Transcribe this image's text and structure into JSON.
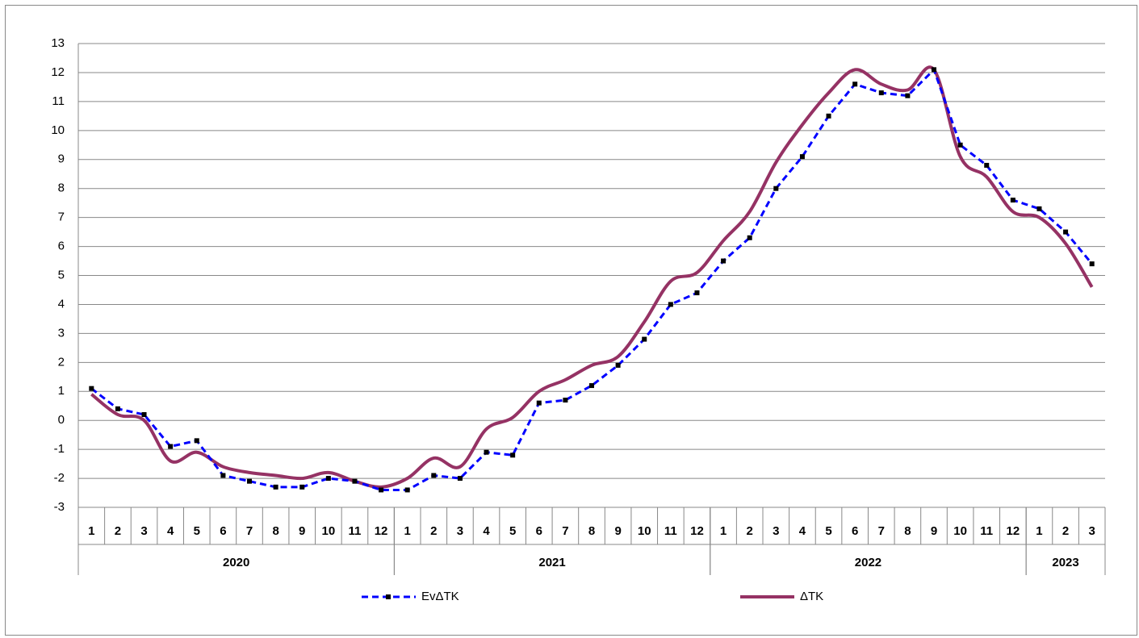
{
  "chart_data": {
    "type": "line",
    "categories": [
      "1",
      "2",
      "3",
      "4",
      "5",
      "6",
      "7",
      "8",
      "9",
      "10",
      "11",
      "12",
      "1",
      "2",
      "3",
      "4",
      "5",
      "6",
      "7",
      "8",
      "9",
      "10",
      "11",
      "12",
      "1",
      "2",
      "3",
      "4",
      "5",
      "6",
      "7",
      "8",
      "9",
      "10",
      "11",
      "12",
      "1",
      "2",
      "3"
    ],
    "category_groups": [
      {
        "label": "2020",
        "size": 12
      },
      {
        "label": "2021",
        "size": 12
      },
      {
        "label": "2022",
        "size": 12
      },
      {
        "label": "2023",
        "size": 3
      }
    ],
    "series": [
      {
        "name": "EvΔTK",
        "color": "#0000ff",
        "dashed": true,
        "marker": "square",
        "smooth": false,
        "values": [
          1.1,
          0.4,
          0.2,
          -0.9,
          -0.7,
          -1.9,
          -2.1,
          -2.3,
          -2.3,
          -2.0,
          -2.1,
          -2.4,
          -2.4,
          -1.9,
          -2.0,
          -1.1,
          -1.2,
          0.6,
          0.7,
          1.2,
          1.9,
          2.8,
          4.0,
          4.4,
          5.5,
          6.3,
          8.0,
          9.1,
          10.5,
          11.6,
          11.3,
          11.2,
          12.1,
          9.5,
          8.8,
          7.6,
          7.3,
          6.5,
          5.4
        ]
      },
      {
        "name": "ΔTK",
        "color": "#953264",
        "dashed": false,
        "marker": null,
        "smooth": true,
        "values": [
          0.9,
          0.2,
          0.0,
          -1.4,
          -1.1,
          -1.6,
          -1.8,
          -1.9,
          -2.0,
          -1.8,
          -2.1,
          -2.3,
          -2.0,
          -1.3,
          -1.6,
          -0.3,
          0.1,
          1.0,
          1.4,
          1.9,
          2.2,
          3.4,
          4.8,
          5.1,
          6.2,
          7.2,
          8.9,
          10.2,
          11.3,
          12.1,
          11.6,
          11.4,
          12.1,
          9.1,
          8.4,
          7.2,
          7.0,
          6.1,
          4.6
        ]
      }
    ],
    "ylim": [
      -3,
      13
    ],
    "yticks": [
      -3,
      -2,
      -1,
      0,
      1,
      2,
      3,
      4,
      5,
      6,
      7,
      8,
      9,
      10,
      11,
      12,
      13
    ],
    "grid": true,
    "legend": "bottom"
  }
}
